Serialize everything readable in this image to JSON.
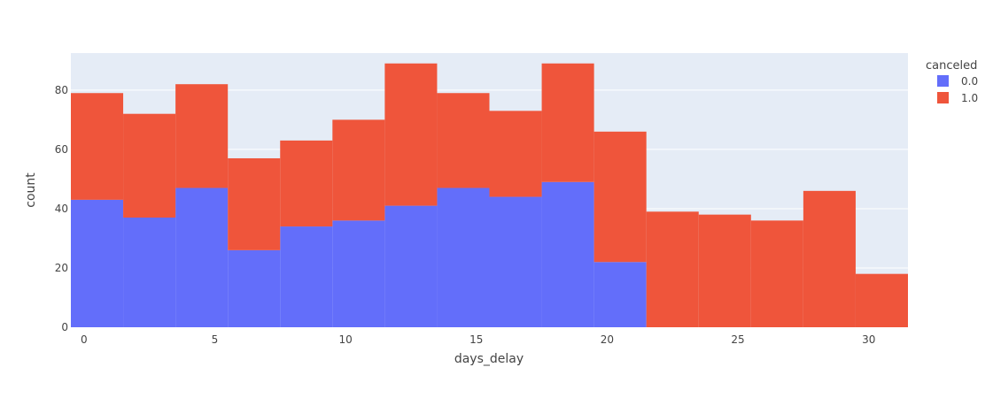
{
  "chart_data": {
    "type": "bar",
    "barmode": "stack",
    "title": "",
    "xlabel": "days_delay",
    "ylabel": "count",
    "xlim": [
      -0.5,
      31.5
    ],
    "ylim": [
      0,
      92.5
    ],
    "xticks": [
      0,
      5,
      10,
      15,
      20,
      25,
      30
    ],
    "yticks": [
      0,
      20,
      40,
      60,
      80
    ],
    "bin_edges": [
      -0.5,
      1.5,
      3.5,
      5.5,
      7.5,
      9.5,
      11.5,
      13.5,
      15.5,
      17.5,
      19.5,
      21.5,
      23.5,
      25.5,
      27.5,
      29.5,
      31.5
    ],
    "legend_title": "canceled",
    "legend_position": "top-right",
    "grid": true,
    "plot_background": "#e5ecf6",
    "series": [
      {
        "name": "0.0",
        "color": "#636efa",
        "values": [
          43,
          37,
          47,
          26,
          34,
          36,
          41,
          47,
          44,
          49,
          22,
          0,
          0,
          0,
          0,
          0
        ]
      },
      {
        "name": "1.0",
        "color": "#ef553b",
        "values": [
          36,
          35,
          35,
          31,
          29,
          34,
          48,
          32,
          29,
          40,
          44,
          39,
          38,
          36,
          46,
          18
        ]
      }
    ]
  }
}
